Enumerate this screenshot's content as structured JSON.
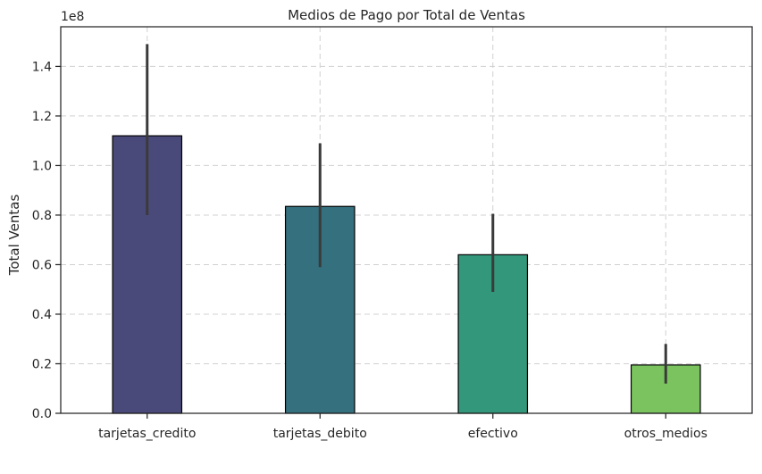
{
  "chart_data": {
    "type": "bar",
    "title": "Medios de Pago por Total de Ventas",
    "xlabel": "",
    "ylabel": "Total Ventas",
    "y_multiplier_label": "1e8",
    "categories": [
      "tarjetas_credito",
      "tarjetas_debito",
      "efectivo",
      "otros_medios"
    ],
    "values": [
      1.12,
      0.835,
      0.64,
      0.195
    ],
    "error_low": [
      0.8,
      0.59,
      0.49,
      0.12
    ],
    "error_high": [
      1.49,
      1.09,
      0.805,
      0.28
    ],
    "colors": [
      "#4a4a7a",
      "#35707f",
      "#33977b",
      "#7bc35f"
    ],
    "ylim": [
      0,
      1.56
    ],
    "yticks": [
      0.0,
      0.2,
      0.4,
      0.6,
      0.8,
      1.0,
      1.2,
      1.4
    ],
    "ytick_labels": [
      "0.0",
      "0.2",
      "0.4",
      "0.6",
      "0.8",
      "1.0",
      "1.2",
      "1.4"
    ],
    "grid": true
  }
}
